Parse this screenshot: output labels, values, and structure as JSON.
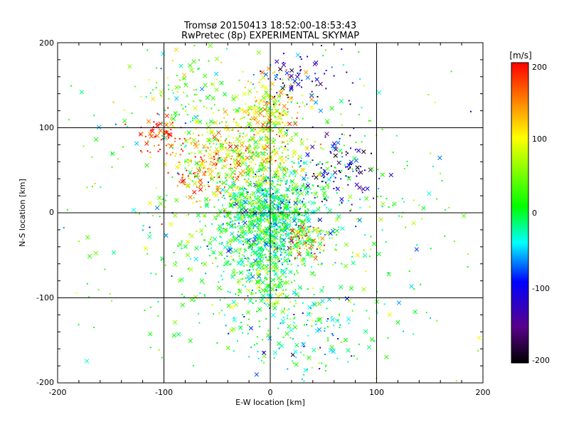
{
  "chart_data": {
    "type": "scatter",
    "title": "Tromsø 20150413 18:52:00-18:53:43",
    "subtitle": "RwPretec (8p) EXPERIMENTAL SKYMAP",
    "xlabel": "E-W location [km]",
    "ylabel": "N-S location [km]",
    "xlim": [
      -200,
      200
    ],
    "ylim": [
      -200,
      200
    ],
    "xticks": [
      "-200",
      "-100",
      "0",
      "100",
      "200"
    ],
    "yticks": [
      "-200",
      "-100",
      "0",
      "100",
      "200"
    ],
    "grid_lines_at": [
      -100,
      0,
      100
    ],
    "marker_styles": [
      "dot",
      "cross"
    ],
    "colorbar": {
      "label": "[m/s]",
      "range": [
        -200,
        200
      ],
      "ticks": [
        "200",
        "100",
        "0",
        "-100",
        "-200"
      ],
      "colormap": [
        "#000000",
        "#5a008c",
        "#0000ff",
        "#00ffff",
        "#00ff00",
        "#ffff00",
        "#ff0000"
      ]
    },
    "point_clusters": [
      {
        "center": [
          0,
          0
        ],
        "spread": [
          25,
          28
        ],
        "count": 900,
        "mean_velocity": -10
      },
      {
        "center": [
          -5,
          -50
        ],
        "spread": [
          22,
          35
        ],
        "count": 500,
        "mean_velocity": 5
      },
      {
        "center": [
          -20,
          70
        ],
        "spread": [
          25,
          22
        ],
        "count": 350,
        "mean_velocity": 90
      },
      {
        "center": [
          0,
          120
        ],
        "spread": [
          15,
          20
        ],
        "count": 180,
        "mean_velocity": 110
      },
      {
        "center": [
          -100,
          90
        ],
        "spread": [
          14,
          12
        ],
        "count": 70,
        "mean_velocity": 185
      },
      {
        "center": [
          -60,
          50
        ],
        "spread": [
          20,
          18
        ],
        "count": 120,
        "mean_velocity": 150
      },
      {
        "center": [
          25,
          160
        ],
        "spread": [
          20,
          20
        ],
        "count": 80,
        "mean_velocity": -120
      },
      {
        "center": [
          65,
          50
        ],
        "spread": [
          20,
          25
        ],
        "count": 110,
        "mean_velocity": -130
      },
      {
        "center": [
          30,
          -30
        ],
        "spread": [
          10,
          10
        ],
        "count": 60,
        "mean_velocity": 150
      },
      {
        "center": [
          0,
          0
        ],
        "spread": [
          95,
          95
        ],
        "count": 650,
        "mean_velocity": 20
      },
      {
        "center": [
          40,
          -140
        ],
        "spread": [
          35,
          25
        ],
        "count": 120,
        "mean_velocity": -40
      },
      {
        "center": [
          -80,
          140
        ],
        "spread": [
          25,
          25
        ],
        "count": 100,
        "mean_velocity": 40
      }
    ]
  }
}
